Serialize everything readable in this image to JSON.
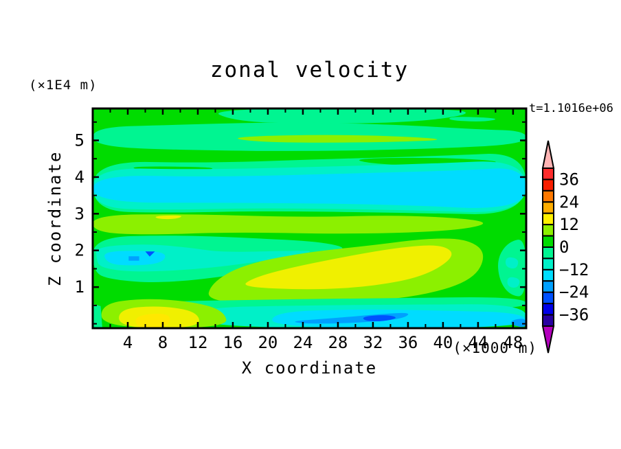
{
  "page": {
    "background": "#FFFFFF"
  },
  "header": {
    "title": "zonal velocity",
    "time_label": "t=1.1016e+06",
    "z_axis_unit": "(×1E4 m)"
  },
  "axes": {
    "x_label": "X coordinate",
    "x_unit": "(×1000 m)",
    "z_label": "Z coordinate"
  },
  "chart_data": {
    "type": "filled-contour",
    "title": "zonal velocity",
    "time_annotation": "t=1.1016e+06",
    "x_axis": {
      "label": "X coordinate",
      "unit": "(×1000 m)",
      "range": [
        0,
        49.5
      ],
      "major_ticks": [
        4,
        8,
        12,
        16,
        20,
        24,
        28,
        32,
        36,
        40,
        44,
        48
      ],
      "minor_tick_step": 2
    },
    "z_axis": {
      "label": "Z coordinate",
      "unit": "(×1E4 m)",
      "range": [
        -0.12,
        5.87
      ],
      "major_ticks": [
        1,
        2,
        3,
        4,
        5
      ],
      "minor_tick_step": 0.5
    },
    "contour_interval": 6,
    "value_range_shown": [
      -42,
      42
    ],
    "colorbar": {
      "orientation": "vertical",
      "boundary_labels": [
        "36",
        "24",
        "12",
        "0",
        "−12",
        "−24",
        "−36"
      ],
      "over_arrow_color": "#FFB4B4",
      "under_arrow_color": "#B400BE",
      "bands_top_to_bottom": [
        {
          "range": "36..42",
          "color": "#FF2D2D"
        },
        {
          "range": "30..36",
          "color": "#F81E00"
        },
        {
          "range": "24..30",
          "color": "#FF7800"
        },
        {
          "range": "18..24",
          "color": "#FFAD00"
        },
        {
          "range": "12..18",
          "color": "#FFF000"
        },
        {
          "range": "6..12",
          "color": "#8CF000"
        },
        {
          "range": "0..6",
          "color": "#00DC00"
        },
        {
          "range": "-6..0",
          "color": "#00F591"
        },
        {
          "range": "-12..-6",
          "color": "#00F0C8"
        },
        {
          "range": "-18..-12",
          "color": "#00DCFF"
        },
        {
          "range": "-24..-18",
          "color": "#00A0FF"
        },
        {
          "range": "-30..-24",
          "color": "#0050FF"
        },
        {
          "range": "-36..-30",
          "color": "#0000E6"
        },
        {
          "range": "-42..-36",
          "color": "#2800A0"
        }
      ]
    },
    "background_band": {
      "range": "0..6",
      "color": "#00DC00"
    },
    "regions": [
      {
        "name": "top-mint-cap",
        "band": "-6..0",
        "color": "#00F591",
        "smooth": true,
        "pts": [
          [
            13,
            5.87
          ],
          [
            41,
            5.87
          ],
          [
            43.5,
            5.72
          ],
          [
            37,
            5.5
          ],
          [
            25,
            5.44
          ],
          [
            16,
            5.52
          ]
        ]
      },
      {
        "name": "top-right-mint-sliver",
        "band": "-6..0",
        "color": "#00F591",
        "smooth": true,
        "pts": [
          [
            41,
            5.66
          ],
          [
            46.8,
            5.6
          ],
          [
            44.5,
            5.5
          ],
          [
            40.5,
            5.55
          ]
        ]
      },
      {
        "name": "upper-mint-band",
        "band": "-6..0",
        "color": "#00F591",
        "smooth": true,
        "pts": [
          [
            0,
            5.36
          ],
          [
            9,
            5.42
          ],
          [
            21,
            5.5
          ],
          [
            34,
            5.44
          ],
          [
            44,
            5.3
          ],
          [
            49.5,
            5.26
          ],
          [
            49.5,
            4.9
          ],
          [
            39,
            4.77
          ],
          [
            25,
            4.7
          ],
          [
            11,
            4.73
          ],
          [
            0,
            4.83
          ]
        ]
      },
      {
        "name": "upper-chartreuse-lens",
        "band": "6..12",
        "color": "#8CF000",
        "smooth": true,
        "pts": [
          [
            15,
            5.1
          ],
          [
            29,
            5.17
          ],
          [
            42,
            5.03
          ],
          [
            33,
            4.94
          ],
          [
            19,
            4.94
          ]
        ]
      },
      {
        "name": "mid-mint-band",
        "band": "-6..0",
        "color": "#00F591",
        "smooth": true,
        "pts": [
          [
            0,
            4.44
          ],
          [
            13,
            4.38
          ],
          [
            28,
            4.5
          ],
          [
            40,
            4.58
          ],
          [
            49.5,
            4.68
          ],
          [
            49.5,
            2.96
          ],
          [
            37,
            3.02
          ],
          [
            20,
            3.08
          ],
          [
            8,
            3.02
          ],
          [
            0,
            3.08
          ]
        ]
      },
      {
        "name": "mid-green-lens-right",
        "band": "0..6",
        "color": "#00DC00",
        "smooth": true,
        "pts": [
          [
            29,
            4.5
          ],
          [
            39,
            4.54
          ],
          [
            47.5,
            4.43
          ],
          [
            43,
            4.3
          ],
          [
            33,
            4.33
          ]
        ]
      },
      {
        "name": "mid-green-lens-left",
        "band": "0..6",
        "color": "#00DC00",
        "smooth": true,
        "pts": [
          [
            4,
            4.3
          ],
          [
            15,
            4.27
          ],
          [
            11.5,
            4.14
          ],
          [
            5.5,
            4.17
          ]
        ]
      },
      {
        "name": "turquoise-band",
        "band": "-12..-6",
        "color": "#00F0C8",
        "smooth": true,
        "pts": [
          [
            0,
            4.26
          ],
          [
            12,
            4.2
          ],
          [
            26,
            4.28
          ],
          [
            38,
            4.36
          ],
          [
            49.5,
            4.48
          ],
          [
            49.5,
            3.0
          ],
          [
            36,
            3.1
          ],
          [
            20,
            3.16
          ],
          [
            8,
            3.1
          ],
          [
            0,
            3.16
          ]
        ]
      },
      {
        "name": "cyan-band",
        "band": "-18..-12",
        "color": "#00DCFF",
        "smooth": true,
        "pts": [
          [
            0,
            4.06
          ],
          [
            14,
            4.0
          ],
          [
            30,
            4.1
          ],
          [
            42,
            4.18
          ],
          [
            49.5,
            4.28
          ],
          [
            49.5,
            3.08
          ],
          [
            34,
            3.26
          ],
          [
            16,
            3.3
          ],
          [
            0,
            3.3
          ]
        ]
      },
      {
        "name": "chartreuse-band",
        "band": "6..12",
        "color": "#8CF000",
        "smooth": true,
        "pts": [
          [
            0,
            2.96
          ],
          [
            10,
            3.0
          ],
          [
            24,
            2.9
          ],
          [
            36,
            2.97
          ],
          [
            46,
            2.8
          ],
          [
            42,
            2.54
          ],
          [
            30,
            2.44
          ],
          [
            16,
            2.5
          ],
          [
            6,
            2.42
          ],
          [
            0,
            2.5
          ]
        ]
      },
      {
        "name": "yellow-speck-in-band",
        "band": "12..18",
        "color": "#F0F000",
        "smooth": true,
        "pts": [
          [
            7,
            2.94
          ],
          [
            10.5,
            2.96
          ],
          [
            9.5,
            2.85
          ],
          [
            7.4,
            2.86
          ]
        ]
      },
      {
        "name": "left-spring-envelope",
        "band": "-6..0",
        "color": "#00F591",
        "smooth": true,
        "pts": [
          [
            0,
            2.36
          ],
          [
            9,
            2.42
          ],
          [
            18,
            2.34
          ],
          [
            26,
            2.24
          ],
          [
            29.5,
            2.04
          ],
          [
            25,
            1.84
          ],
          [
            17,
            1.34
          ],
          [
            8,
            1.1
          ],
          [
            2,
            1.2
          ],
          [
            0,
            1.42
          ]
        ]
      },
      {
        "name": "left-turquoise-blob",
        "band": "-12..-6",
        "color": "#00F0C8",
        "smooth": true,
        "pts": [
          [
            0.4,
            2.1
          ],
          [
            6,
            2.18
          ],
          [
            11,
            2.08
          ],
          [
            14.5,
            1.95
          ],
          [
            21,
            1.98
          ],
          [
            26,
            2.0
          ],
          [
            21.5,
            1.78
          ],
          [
            13,
            1.5
          ],
          [
            5,
            1.4
          ],
          [
            0.8,
            1.52
          ],
          [
            0.4,
            1.8
          ]
        ]
      },
      {
        "name": "left-cyan-core",
        "band": "-18..-12",
        "color": "#00DCFF",
        "smooth": true,
        "pts": [
          [
            1.2,
            1.96
          ],
          [
            5,
            2.0
          ],
          [
            8.6,
            1.94
          ],
          [
            7.8,
            1.62
          ],
          [
            3,
            1.58
          ],
          [
            1.5,
            1.7
          ]
        ]
      },
      {
        "name": "left-sky-speck",
        "band": "-24..-18",
        "color": "#00A0FF",
        "smooth": false,
        "pts": [
          [
            4.1,
            1.84
          ],
          [
            5.3,
            1.84
          ],
          [
            5.3,
            1.72
          ],
          [
            4.1,
            1.72
          ]
        ]
      },
      {
        "name": "left-dodger-speck",
        "band": "-30..-24",
        "color": "#0050FF",
        "smooth": false,
        "pts": [
          [
            6.0,
            1.97
          ],
          [
            7.1,
            1.97
          ],
          [
            6.5,
            1.83
          ]
        ]
      },
      {
        "name": "warm-chartreuse-blob",
        "band": "6..12",
        "color": "#8CF000",
        "smooth": true,
        "pts": [
          [
            13,
            0.6
          ],
          [
            22,
            0.52
          ],
          [
            31,
            0.6
          ],
          [
            38,
            0.78
          ],
          [
            43.5,
            1.2
          ],
          [
            45,
            1.9
          ],
          [
            43,
            2.3
          ],
          [
            38.5,
            2.34
          ],
          [
            32,
            2.14
          ],
          [
            24,
            1.94
          ],
          [
            17,
            1.6
          ],
          [
            13.5,
            1.1
          ]
        ]
      },
      {
        "name": "warm-yellow-core",
        "band": "12..18",
        "color": "#F0F000",
        "smooth": true,
        "pts": [
          [
            17,
            1.0
          ],
          [
            25,
            0.92
          ],
          [
            32,
            1.02
          ],
          [
            38,
            1.3
          ],
          [
            41.5,
            1.85
          ],
          [
            40,
            2.16
          ],
          [
            35.5,
            2.1
          ],
          [
            29,
            1.84
          ],
          [
            22,
            1.5
          ],
          [
            18,
            1.22
          ]
        ]
      },
      {
        "name": "right-mint-column",
        "band": "-6..0",
        "color": "#00F591",
        "smooth": true,
        "pts": [
          [
            49.5,
            2.34
          ],
          [
            47.5,
            2.24
          ],
          [
            46.2,
            1.8
          ],
          [
            46.4,
            1.2
          ],
          [
            47.6,
            0.78
          ],
          [
            49.5,
            0.72
          ]
        ]
      },
      {
        "name": "right-turquoise-patch-a",
        "band": "-12..-6",
        "color": "#00F0C8",
        "smooth": true,
        "pts": [
          [
            47.2,
            1.84
          ],
          [
            48.7,
            1.77
          ],
          [
            48.4,
            1.48
          ],
          [
            47.1,
            1.55
          ]
        ]
      },
      {
        "name": "right-turquoise-patch-b",
        "band": "-12..-6",
        "color": "#00F0C8",
        "smooth": true,
        "pts": [
          [
            47.4,
            1.3
          ],
          [
            48.9,
            1.22
          ],
          [
            48.5,
            0.96
          ],
          [
            47.3,
            1.02
          ]
        ]
      },
      {
        "name": "bottom-spring-band",
        "band": "-6..0",
        "color": "#00F591",
        "smooth": true,
        "pts": [
          [
            6.5,
            0.6
          ],
          [
            20,
            0.66
          ],
          [
            34,
            0.7
          ],
          [
            49.5,
            0.74
          ],
          [
            49.5,
            0.38
          ],
          [
            30,
            0.44
          ],
          [
            14,
            0.4
          ],
          [
            7,
            0.46
          ]
        ]
      },
      {
        "name": "bottom-turquoise-band",
        "band": "-12..-6",
        "color": "#00F0C8",
        "smooth": true,
        "pts": [
          [
            11.5,
            0.44
          ],
          [
            24,
            0.5
          ],
          [
            36,
            0.52
          ],
          [
            49.5,
            0.54
          ],
          [
            49.5,
            -0.12
          ],
          [
            11.5,
            -0.12
          ]
        ]
      },
      {
        "name": "bottom-cyan-band",
        "band": "-18..-12",
        "color": "#00DCFF",
        "smooth": true,
        "pts": [
          [
            20.5,
            0.32
          ],
          [
            30,
            0.4
          ],
          [
            40,
            0.36
          ],
          [
            49.5,
            0.3
          ],
          [
            49.5,
            -0.12
          ],
          [
            20.5,
            -0.12
          ]
        ]
      },
      {
        "name": "bottom-sky-streak",
        "band": "-24..-18",
        "color": "#00A0FF",
        "smooth": true,
        "pts": [
          [
            23,
            0.08
          ],
          [
            28,
            0.16
          ],
          [
            33,
            0.27
          ],
          [
            36.5,
            0.31
          ],
          [
            35.2,
            0.12
          ],
          [
            30,
            0.02
          ],
          [
            25,
            0.0
          ],
          [
            23.2,
            0.03
          ]
        ]
      },
      {
        "name": "bottom-dodger-core",
        "band": "-30..-24",
        "color": "#0050FF",
        "smooth": true,
        "pts": [
          [
            30.8,
            0.2
          ],
          [
            33.6,
            0.25
          ],
          [
            35.0,
            0.16
          ],
          [
            33,
            0.06
          ],
          [
            31,
            0.08
          ]
        ]
      },
      {
        "name": "corner-sky-patch",
        "band": "-24..-18",
        "color": "#00A0FF",
        "smooth": true,
        "pts": [
          [
            47.8,
            0.1
          ],
          [
            49.5,
            0.16
          ],
          [
            49.5,
            -0.12
          ],
          [
            47.8,
            -0.03
          ]
        ]
      },
      {
        "name": "bottom-left-chartreuse",
        "band": "6..12",
        "color": "#8CF000",
        "smooth": true,
        "pts": [
          [
            0.9,
            0.55
          ],
          [
            6,
            0.7
          ],
          [
            11.5,
            0.6
          ],
          [
            15,
            0.36
          ],
          [
            15.5,
            -0.12
          ],
          [
            1.1,
            -0.12
          ]
        ]
      },
      {
        "name": "bottom-left-yellow",
        "band": "12..18",
        "color": "#F0F000",
        "smooth": true,
        "pts": [
          [
            2.9,
            0.4
          ],
          [
            7.5,
            0.5
          ],
          [
            12,
            0.34
          ],
          [
            12.3,
            -0.12
          ],
          [
            3.1,
            -0.12
          ]
        ]
      },
      {
        "name": "bottom-left-bright-core",
        "band": "12..18",
        "color": "#FFE800",
        "smooth": true,
        "pts": [
          [
            4.8,
            0.24
          ],
          [
            9,
            0.3
          ],
          [
            8.6,
            -0.12
          ],
          [
            5,
            -0.12
          ]
        ]
      },
      {
        "name": "corner-mint",
        "band": "-6..0",
        "color": "#00F591",
        "smooth": false,
        "pts": [
          [
            0,
            0.54
          ],
          [
            0.9,
            0.48
          ],
          [
            1.1,
            -0.12
          ],
          [
            0,
            -0.12
          ]
        ]
      }
    ]
  }
}
